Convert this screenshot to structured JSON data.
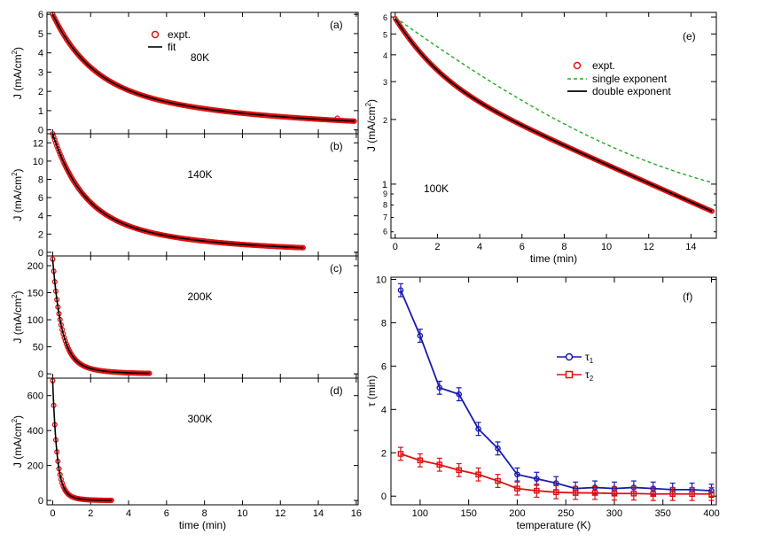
{
  "chart_data": [
    {
      "id": "a",
      "type": "scatter",
      "panel_label": "(a)",
      "annotation": "80K",
      "xlim": [
        -0.3,
        16.1
      ],
      "ylim": [
        -0.2,
        6.1
      ],
      "yticks": [
        0,
        1,
        2,
        3,
        4,
        5,
        6
      ],
      "ytick_labels": [
        "0",
        "1",
        "2",
        "3",
        "4",
        "5",
        "6"
      ],
      "ylabel": "J (mA/cm2)",
      "ylabel_main": "J (mA/cm",
      "ylabel_sup": "2",
      "ylabel_end": ")",
      "decay": {
        "A1": 3.56,
        "tau1": 1.95,
        "A2": 2.44,
        "tau2": 9.4,
        "t_end": 15.9
      },
      "series": [
        {
          "name": "expt.",
          "style": "marker"
        },
        {
          "name": "fit",
          "style": "line"
        }
      ],
      "legend_position": "top-center"
    },
    {
      "id": "b",
      "type": "scatter",
      "panel_label": "(b)",
      "annotation": "140K",
      "xlim": [
        -0.3,
        16.1
      ],
      "ylim": [
        -0.4,
        13.0
      ],
      "yticks": [
        0,
        2,
        4,
        6,
        8,
        10,
        12
      ],
      "ytick_labels": [
        "0",
        "2",
        "4",
        "6",
        "8",
        "10",
        "12"
      ],
      "ylabel_main": "J (mA/cm",
      "ylabel_sup": "2",
      "ylabel_end": ")",
      "decay": {
        "A1": 8.5,
        "tau1": 1.5,
        "A2": 4.5,
        "tau2": 6.0,
        "t_end": 13.2
      }
    },
    {
      "id": "c",
      "type": "scatter",
      "panel_label": "(c)",
      "annotation": "200K",
      "xlim": [
        -0.3,
        16.1
      ],
      "ylim": [
        -8,
        218
      ],
      "yticks": [
        0,
        50,
        100,
        150,
        200
      ],
      "ytick_labels": [
        "0",
        "50",
        "100",
        "150",
        "200"
      ],
      "ylabel_main": "J (mA/cm",
      "ylabel_sup": "2",
      "ylabel_end": ")",
      "decay": {
        "A1": 180,
        "tau1": 0.45,
        "A2": 32,
        "tau2": 1.4,
        "t_end": 5.1
      }
    },
    {
      "id": "d",
      "type": "scatter",
      "panel_label": "(d)",
      "annotation": "300K",
      "xlim": [
        -0.3,
        16.1
      ],
      "ylim": [
        -25,
        700
      ],
      "yticks": [
        0,
        200,
        400,
        600
      ],
      "ytick_labels": [
        "0",
        "200",
        "400",
        "600"
      ],
      "ylabel_main": "J (mA/cm",
      "ylabel_sup": "2",
      "ylabel_end": ")",
      "xlabel": "time (min)",
      "xticks": [
        0,
        2,
        4,
        6,
        8,
        10,
        12,
        14,
        16
      ],
      "xtick_labels": [
        "0",
        "2",
        "4",
        "6",
        "8",
        "10",
        "12",
        "14",
        "16"
      ],
      "decay": {
        "A1": 600,
        "tau1": 0.22,
        "A2": 85,
        "tau2": 0.6,
        "t_end": 3.1
      }
    },
    {
      "id": "e",
      "type": "line",
      "panel_label": "(e)",
      "annotation": "100K",
      "yscale": "log",
      "xlim": [
        -0.2,
        15.2
      ],
      "ylim": [
        5.6,
        6.3
      ],
      "ylabel_main": "J (mA/cm",
      "ylabel_sup": "2",
      "ylabel_end": ")",
      "xlabel": "time (min)",
      "xticks": [
        0,
        2,
        4,
        6,
        8,
        10,
        12,
        14
      ],
      "xtick_labels": [
        "0",
        "2",
        "4",
        "6",
        "8",
        "10",
        "12",
        "14"
      ],
      "yticks_major": [
        1,
        2,
        3,
        4,
        5,
        6
      ],
      "ytick_labels_major": [
        "1",
        "2",
        "3",
        "4",
        "5",
        "6"
      ],
      "yticks_minor": [
        0.6,
        0.7,
        0.8,
        0.9
      ],
      "ytick_labels_minor": [
        "6",
        "7",
        "8",
        "9"
      ],
      "double": {
        "A1": 2.55,
        "tau1": 1.45,
        "A2": 3.35,
        "tau2": 10.0
      },
      "single": {
        "A": 5.3,
        "tau": 5.5,
        "C": 0.67
      },
      "series": [
        {
          "name": "expt.",
          "style": "marker"
        },
        {
          "name": "single exponent",
          "style": "dashed"
        },
        {
          "name": "double exponent",
          "style": "line"
        }
      ],
      "legend_position": "center-right"
    },
    {
      "id": "f",
      "type": "line",
      "panel_label": "(f)",
      "xlabel": "temperature (K)",
      "ylabel": "τ (min)",
      "xlim": [
        70,
        405
      ],
      "ylim": [
        -0.4,
        10.1
      ],
      "xticks": [
        100,
        150,
        200,
        250,
        300,
        350,
        400
      ],
      "xtick_labels": [
        "100",
        "150",
        "200",
        "250",
        "300",
        "350",
        "400"
      ],
      "yticks": [
        0,
        2,
        4,
        6,
        8,
        10
      ],
      "ytick_labels": [
        "0",
        "2",
        "4",
        "6",
        "8",
        "10"
      ],
      "x": [
        80,
        100,
        120,
        140,
        160,
        180,
        200,
        220,
        240,
        260,
        280,
        300,
        320,
        340,
        360,
        380,
        400
      ],
      "series": [
        {
          "name": "τ1",
          "name_main": "τ",
          "name_sub": "1",
          "color": "#1a1ab0",
          "marker": "circle",
          "values": [
            9.5,
            7.4,
            5.0,
            4.7,
            3.1,
            2.2,
            1.0,
            0.8,
            0.6,
            0.35,
            0.4,
            0.35,
            0.4,
            0.35,
            0.3,
            0.3,
            0.25
          ],
          "errors": [
            0.3,
            0.3,
            0.3,
            0.3,
            0.3,
            0.3,
            0.3,
            0.3,
            0.3,
            0.3,
            0.3,
            0.3,
            0.3,
            0.3,
            0.3,
            0.3,
            0.3
          ]
        },
        {
          "name": "τ2",
          "name_main": "τ",
          "name_sub": "2",
          "color": "#e01010",
          "marker": "square",
          "values": [
            1.95,
            1.65,
            1.45,
            1.2,
            1.0,
            0.7,
            0.35,
            0.25,
            0.18,
            0.15,
            0.15,
            0.12,
            0.12,
            0.1,
            0.1,
            0.1,
            0.1
          ],
          "errors": [
            0.3,
            0.3,
            0.3,
            0.3,
            0.3,
            0.3,
            0.3,
            0.3,
            0.3,
            0.3,
            0.3,
            0.3,
            0.3,
            0.3,
            0.3,
            0.3,
            0.3
          ]
        }
      ],
      "legend_position": "center"
    }
  ],
  "colors": {
    "marker": "#e01010",
    "fit": "#000000",
    "single": "#22aa22",
    "tau1": "#1a1ab0",
    "tau2": "#e01010"
  }
}
